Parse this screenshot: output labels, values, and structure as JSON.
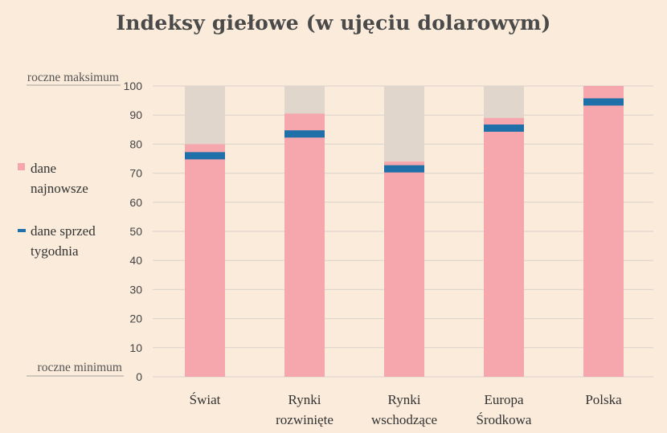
{
  "chart_data": {
    "type": "bar",
    "title": "Indeksy giełowe (w ujęciu dolarowym)",
    "ylim": [
      0,
      100
    ],
    "yticks": [
      0,
      10,
      20,
      30,
      40,
      50,
      60,
      70,
      80,
      90,
      100
    ],
    "y_top_label": "roczne maksimum",
    "y_bottom_label": "roczne minimum",
    "categories": [
      [
        "Świat"
      ],
      [
        "Rynki",
        "rozwinięte"
      ],
      [
        "Rynki",
        "wschodzące"
      ],
      [
        "Europa",
        "Środkowa"
      ],
      [
        "Polska"
      ]
    ],
    "series": [
      {
        "name": "dane najnowsze",
        "values": [
          80,
          90.5,
          74,
          89,
          100
        ]
      },
      {
        "name": "dane sprzed tygodnia",
        "values": [
          76,
          83.5,
          71.5,
          85.5,
          94.5
        ]
      }
    ],
    "legend": [
      {
        "lines": [
          "dane",
          "najnowsze"
        ],
        "marker": "square"
      },
      {
        "lines": [
          "dane sprzed",
          "tygodnia"
        ],
        "marker": "dash"
      }
    ],
    "colors": {
      "background": "#faebdb",
      "range_bar": "#e1d6cc",
      "latest_bar": "#f6a6ad",
      "week_marker": "#1f6fa8",
      "grid": "#d9d2cc"
    },
    "grid": true,
    "legend_position": "left"
  }
}
